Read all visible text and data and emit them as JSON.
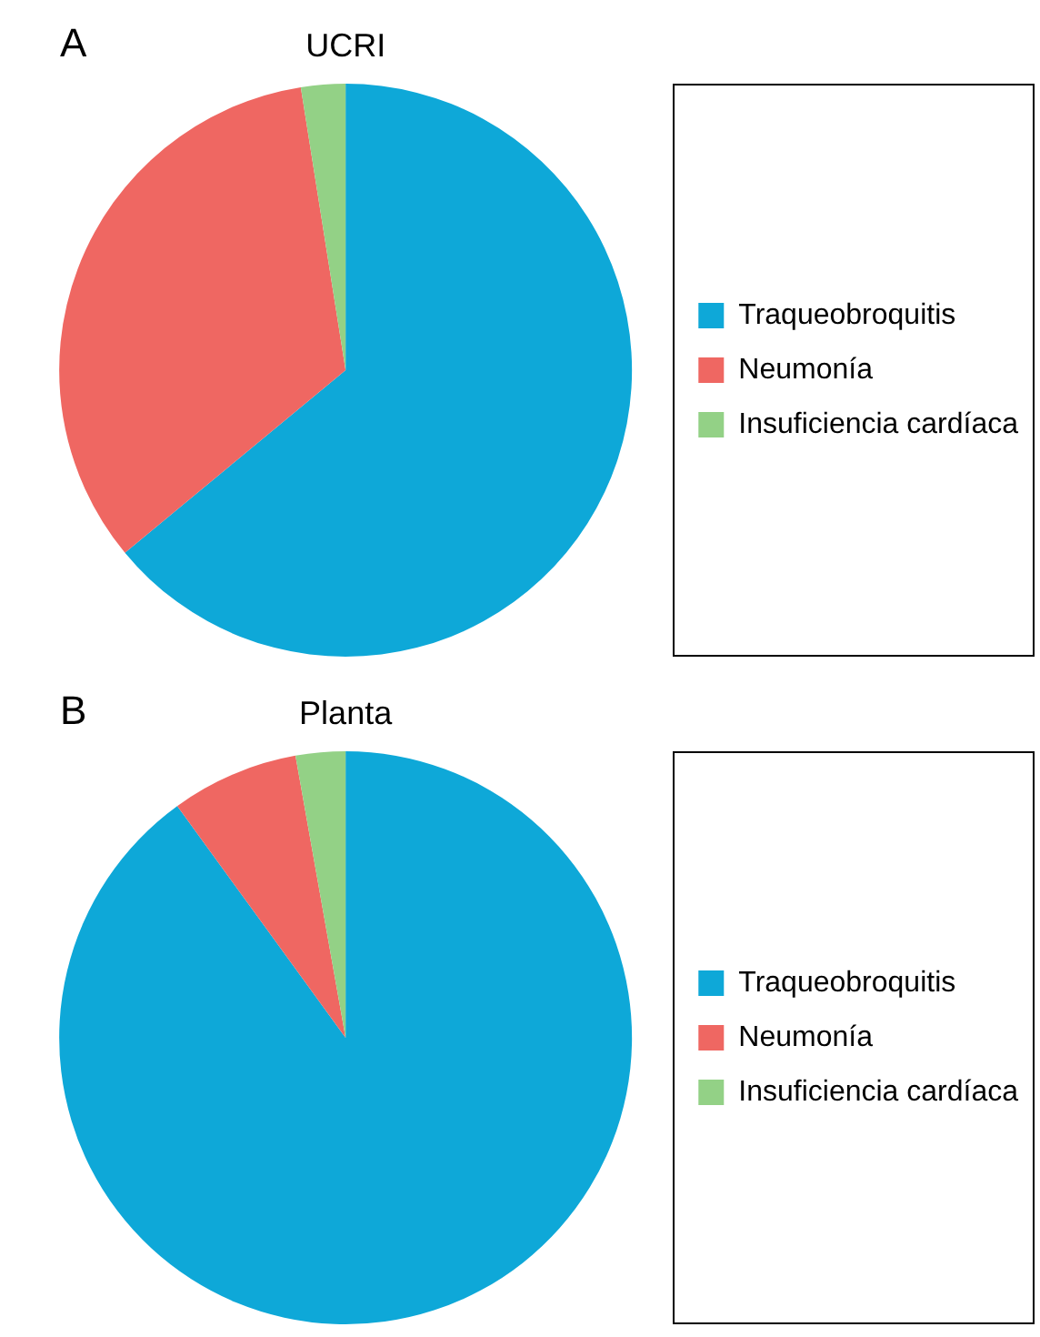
{
  "chart_data": [
    {
      "type": "pie",
      "title": "UCRI",
      "annotations": [
        "A"
      ],
      "categories": [
        "Traqueobroquitis",
        "Neumonía",
        "Insuficiencia cardíaca"
      ],
      "values": [
        64,
        33.5,
        2.5
      ],
      "colors": [
        "#0ea8d8",
        "#ef6762",
        "#93d186"
      ],
      "legend": "right"
    },
    {
      "type": "pie",
      "title": "Planta",
      "annotations": [
        "B"
      ],
      "categories": [
        "Traqueobroquitis",
        "Neumonía",
        "Insuficiencia cardíaca"
      ],
      "values": [
        90,
        7.2,
        2.8
      ],
      "colors": [
        "#0ea8d8",
        "#ef6762",
        "#93d186"
      ],
      "legend": "right"
    }
  ]
}
